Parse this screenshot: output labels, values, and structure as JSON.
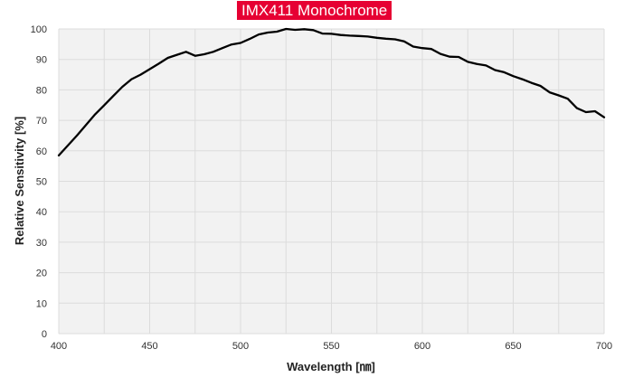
{
  "chart_data": {
    "type": "line",
    "title": "IMX411 Monochrome",
    "xlabel": "Wavelength [㎚]",
    "ylabel": "Relative Sensitivity [%]",
    "xlim": [
      400,
      700
    ],
    "ylim": [
      0,
      100
    ],
    "x_ticks": [
      400,
      450,
      500,
      550,
      600,
      650,
      700
    ],
    "y_ticks": [
      0,
      10,
      20,
      30,
      40,
      50,
      60,
      70,
      80,
      90,
      100
    ],
    "grid": true,
    "legend": "none",
    "series": [
      {
        "x": [
          400,
          410,
          420,
          425,
          430,
          435,
          440,
          445,
          450,
          455,
          460,
          465,
          470,
          475,
          480,
          485,
          490,
          495,
          500,
          505,
          510,
          515,
          520,
          525,
          530,
          535,
          540,
          545,
          550,
          555,
          560,
          565,
          570,
          575,
          580,
          585,
          590,
          595,
          600,
          605,
          610,
          615,
          620,
          625,
          630,
          635,
          640,
          645,
          650,
          655,
          660,
          665,
          670,
          675,
          680,
          685,
          690,
          695,
          700
        ],
        "values": [
          58.5,
          65,
          72,
          75,
          78,
          81,
          83.5,
          85,
          86.8,
          88.6,
          90.5,
          91.5,
          92.5,
          91.2,
          91.7,
          92.5,
          93.7,
          94.9,
          95.4,
          96.7,
          98.2,
          98.8,
          99.1,
          100,
          99.7,
          99.9,
          99.6,
          98.5,
          98.4,
          98,
          97.8,
          97.7,
          97.5,
          97.1,
          96.8,
          96.6,
          95.9,
          94.2,
          93.7,
          93.4,
          91.8,
          90.9,
          90.8,
          89.2,
          88.5,
          88,
          86.5,
          85.8,
          84.5,
          83.5,
          82.3,
          81.3,
          79.2,
          78.2,
          77.1,
          74,
          72.7,
          73,
          71
        ]
      }
    ],
    "colors": {
      "line": "#000000",
      "grid": "#dcdcdc",
      "plot_background": "#f2f2f2",
      "title_background": "#e60033"
    }
  }
}
